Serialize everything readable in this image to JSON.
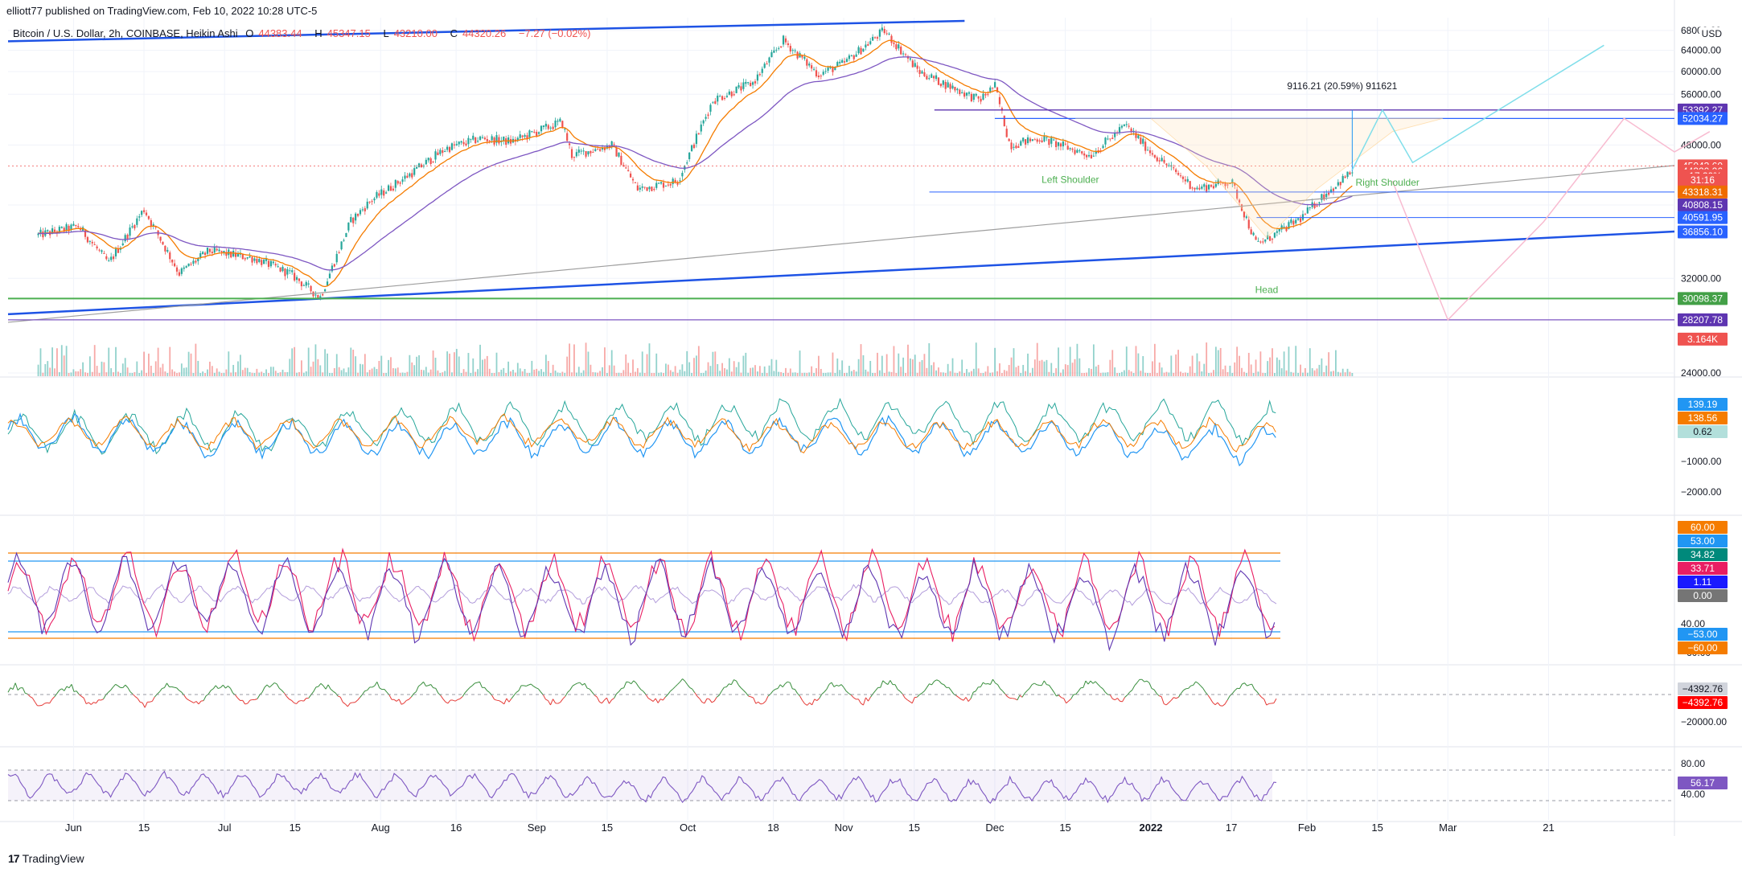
{
  "header": {
    "publisher": "elliott77 published on TradingView.com, Feb 10, 2022 10:28 UTC-5",
    "symbol": "Bitcoin / U.S. Dollar, 2h, COINBASE, Heikin Ashi",
    "ohlc": [
      {
        "label": "O",
        "value": "44383.44"
      },
      {
        "label": "H",
        "value": "45347.15"
      },
      {
        "label": "L",
        "value": "43210.00"
      },
      {
        "label": "C",
        "value": "44320.26"
      },
      {
        "label": "",
        "value": "−7.27 (−0.02%)"
      }
    ],
    "currency": "USD"
  },
  "brand": {
    "name": "TradingView",
    "logo": "tradingview-logo-icon"
  },
  "colors": {
    "up": "#26a69a",
    "down": "#ef5350",
    "trendline": "#1e53e5",
    "ema_fast": "#f57c00",
    "ema_slow": "#7e57c2",
    "support": "#4caf50",
    "level_blue": "#2962ff",
    "path_cyan": "#80deea",
    "path_pink": "#f8bbd0",
    "sma_gray": "#9e9e9e",
    "rsi_purple": "#7e57c2"
  },
  "chart_data": [
    {
      "type": "candlestick",
      "title": "Bitcoin / U.S. Dollar, 2h, COINBASE, Heikin Ashi",
      "x_ticks": [
        "Jun",
        "15",
        "Jul",
        "15",
        "Aug",
        "16",
        "Sep",
        "15",
        "Oct",
        "18",
        "Nov",
        "15",
        "Dec",
        "15",
        "2022",
        "17",
        "Feb",
        "15",
        "Mar",
        "21"
      ],
      "x_tick_dates": [
        "2021-06-01",
        "2021-06-15",
        "2021-07-01",
        "2021-07-15",
        "2021-08-01",
        "2021-08-16",
        "2021-09-01",
        "2021-09-15",
        "2021-10-01",
        "2021-10-18",
        "2021-11-01",
        "2021-11-15",
        "2021-12-01",
        "2021-12-15",
        "2022-01-01",
        "2022-01-17",
        "2022-02-01",
        "2022-02-15",
        "2022-03-01",
        "2022-03-21"
      ],
      "y_ticks": [
        "24000.00",
        "32000.00",
        "40000.00",
        "48000.00",
        "56000.00",
        "60000.00",
        "64000.00",
        "68000.00"
      ],
      "y_scale": "log",
      "ylim": [
        24000,
        70000
      ],
      "price_path": [
        [
          "2021-05-25",
          36500
        ],
        [
          "2021-06-02",
          37500
        ],
        [
          "2021-06-08",
          33500
        ],
        [
          "2021-06-15",
          39500
        ],
        [
          "2021-06-22",
          32500
        ],
        [
          "2021-06-28",
          34800
        ],
        [
          "2021-07-07",
          34000
        ],
        [
          "2021-07-14",
          32500
        ],
        [
          "2021-07-20",
          30200
        ],
        [
          "2021-07-26",
          38000
        ],
        [
          "2021-07-30",
          40500
        ],
        [
          "2021-08-07",
          44000
        ],
        [
          "2021-08-14",
          47500
        ],
        [
          "2021-08-21",
          49000
        ],
        [
          "2021-08-27",
          48500
        ],
        [
          "2021-09-06",
          51500
        ],
        [
          "2021-09-08",
          46500
        ],
        [
          "2021-09-16",
          48000
        ],
        [
          "2021-09-21",
          42000
        ],
        [
          "2021-09-29",
          43000
        ],
        [
          "2021-10-06",
          55000
        ],
        [
          "2021-10-14",
          58000
        ],
        [
          "2021-10-20",
          66000
        ],
        [
          "2021-10-27",
          59500
        ],
        [
          "2021-11-01",
          61500
        ],
        [
          "2021-11-09",
          68000
        ],
        [
          "2021-11-16",
          60000
        ],
        [
          "2021-11-23",
          57000
        ],
        [
          "2021-11-28",
          55000
        ],
        [
          "2021-12-01",
          57500
        ],
        [
          "2021-12-04",
          48000
        ],
        [
          "2021-12-10",
          49000
        ],
        [
          "2021-12-20",
          46500
        ],
        [
          "2021-12-27",
          51000
        ],
        [
          "2022-01-01",
          47000
        ],
        [
          "2022-01-10",
          42000
        ],
        [
          "2022-01-17",
          43000
        ],
        [
          "2022-01-22",
          35500
        ],
        [
          "2022-01-24",
          36000
        ],
        [
          "2022-01-31",
          38500
        ],
        [
          "2022-02-04",
          41000
        ],
        [
          "2022-02-10",
          44300
        ]
      ],
      "series": [
        {
          "name": "EMA fast",
          "color": "#f57c00"
        },
        {
          "name": "EMA slow",
          "color": "#7e57c2"
        }
      ],
      "annotations": [
        {
          "text": "Left Shoulder",
          "date": "2021-12-16",
          "price": 42800,
          "color": "#4caf50"
        },
        {
          "text": "Head",
          "date": "2022-01-24",
          "price": 30600,
          "color": "#4caf50"
        },
        {
          "text": "Right Shoulder",
          "date": "2022-02-17",
          "price": 42400,
          "color": "#4caf50"
        },
        {
          "text": "9116.21 (20.59%) 911621",
          "date": "2022-02-08",
          "price": 56900,
          "color": "#131722"
        }
      ],
      "price_labels": [
        {
          "text": "53392.27",
          "bg": "#5e35b1",
          "fg": "#ffffff",
          "price": 53392.27
        },
        {
          "text": "52034.27",
          "bg": "#2962ff",
          "fg": "#ffffff",
          "price": 52034.27
        },
        {
          "text": "45043.60",
          "bg": "#ef5350",
          "fg": "#ffffff",
          "price": 45043.6
        },
        {
          "text": "44320.26",
          "bg": "#ef5350",
          "fg": "#ffffff",
          "price": 44320.26
        },
        {
          "text": "+17.20%",
          "bg": "#ef5350",
          "fg": "#ffffff",
          "price": 43700
        },
        {
          "text": "31:16",
          "bg": "#ef5350",
          "fg": "#ffffff",
          "price": 43150
        },
        {
          "text": "43318.31",
          "bg": "#ef6c00",
          "fg": "#ffffff",
          "price": 41600
        },
        {
          "text": "40808.15",
          "bg": "#5e35b1",
          "fg": "#ffffff",
          "price": 40000
        },
        {
          "text": "40591.95",
          "bg": "#2962ff",
          "fg": "#ffffff",
          "price": 38500
        },
        {
          "text": "36856.10",
          "bg": "#2962ff",
          "fg": "#ffffff",
          "price": 36856.1
        },
        {
          "text": "30098.37",
          "bg": "#43a047",
          "fg": "#ffffff",
          "price": 30098.37
        },
        {
          "text": "28207.78",
          "bg": "#5e35b1",
          "fg": "#ffffff",
          "price": 28207.78
        },
        {
          "text": "3.164K",
          "bg": "#ef5350",
          "fg": "#ffffff",
          "price": 26600
        }
      ]
    },
    {
      "type": "line",
      "title": "",
      "y_ticks": [
        "−1000.00",
        "−2000.00"
      ],
      "price_labels": [
        {
          "text": "139.19",
          "bg": "#2196f3",
          "fg": "#ffffff"
        },
        {
          "text": "138.56",
          "bg": "#f57c00",
          "fg": "#ffffff"
        },
        {
          "text": "0.62",
          "bg": "#b2dfdb",
          "fg": "#131722"
        }
      ]
    },
    {
      "type": "line",
      "title": "",
      "y_ticks": [
        "40.00",
        "−40.00",
        "−60.00"
      ],
      "bands": [
        60,
        53,
        -53,
        -60
      ],
      "price_labels": [
        {
          "text": "60.00",
          "bg": "#f57c00",
          "fg": "#ffffff"
        },
        {
          "text": "53.00",
          "bg": "#2196f3",
          "fg": "#ffffff"
        },
        {
          "text": "34.82",
          "bg": "#00897b",
          "fg": "#ffffff"
        },
        {
          "text": "33.71",
          "bg": "#e91e63",
          "fg": "#ffffff"
        },
        {
          "text": "1.11",
          "bg": "#1a1aff",
          "fg": "#ffffff"
        },
        {
          "text": "0.00",
          "bg": "#757575",
          "fg": "#ffffff"
        },
        {
          "text": "−53.00",
          "bg": "#2196f3",
          "fg": "#ffffff"
        },
        {
          "text": "−60.00",
          "bg": "#f57c00",
          "fg": "#ffffff"
        }
      ]
    },
    {
      "type": "area",
      "title": "",
      "y_ticks": [
        "−20000.00"
      ],
      "price_labels": [
        {
          "text": "−4392.76",
          "bg": "#d1d4dc",
          "fg": "#131722"
        },
        {
          "text": "−4392.76",
          "bg": "#ff0000",
          "fg": "#ffffff"
        }
      ]
    },
    {
      "type": "line",
      "title": "",
      "y_ticks": [
        "80.00",
        "40.00"
      ],
      "bands": [
        70,
        30
      ],
      "price_labels": [
        {
          "text": "56.17",
          "bg": "#7e57c2",
          "fg": "#ffffff"
        }
      ]
    }
  ]
}
